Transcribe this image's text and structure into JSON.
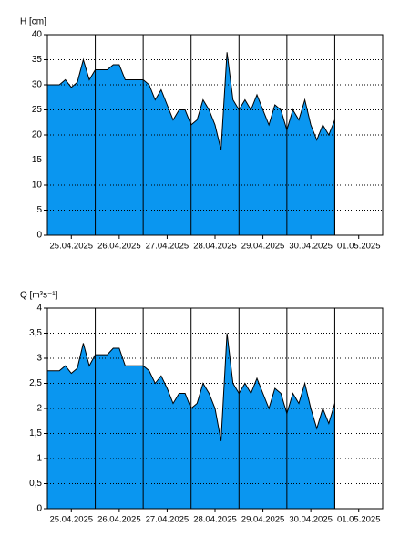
{
  "chart_data": [
    {
      "type": "area",
      "title": "H [cm]",
      "color": "#0a96f0",
      "grid": true,
      "x": [
        0,
        0.125,
        0.25,
        0.375,
        0.5,
        0.625,
        0.75,
        0.875,
        1,
        1.125,
        1.25,
        1.375,
        1.5,
        1.625,
        1.75,
        1.875,
        2,
        2.125,
        2.25,
        2.375,
        2.5,
        2.625,
        2.75,
        2.875,
        3,
        3.125,
        3.25,
        3.375,
        3.5,
        3.625,
        3.75,
        3.875,
        4,
        4.125,
        4.25,
        4.375,
        4.5,
        4.625,
        4.75,
        4.875,
        5,
        5.125,
        5.25,
        5.375,
        5.5,
        5.625,
        5.75,
        5.875,
        6
      ],
      "values": [
        30,
        30,
        30,
        31,
        29.5,
        30.5,
        35,
        31,
        33,
        33,
        33,
        34,
        34,
        31,
        31,
        31,
        31,
        30,
        27,
        29,
        26,
        23,
        25,
        25,
        22,
        23,
        27,
        25,
        22,
        17,
        36.5,
        27,
        25,
        27,
        25,
        28,
        25,
        22,
        26,
        25,
        21,
        25,
        23,
        27,
        22,
        19,
        22,
        20,
        23
      ],
      "xlim": [
        0,
        7
      ],
      "xticks": [
        {
          "value": 0.5,
          "label": "25.04.2025"
        },
        {
          "value": 1.5,
          "label": "26.04.2025"
        },
        {
          "value": 2.5,
          "label": "27.04.2025"
        },
        {
          "value": 3.5,
          "label": "28.04.2025"
        },
        {
          "value": 4.5,
          "label": "29.04.2025"
        },
        {
          "value": 5.5,
          "label": "30.04.2025"
        },
        {
          "value": 6.5,
          "label": "01.05.2025"
        }
      ],
      "ylim": [
        0,
        40
      ],
      "yticks": [
        0,
        5,
        10,
        15,
        20,
        25,
        30,
        35,
        40
      ]
    },
    {
      "type": "area",
      "title": "Q [m³s⁻¹]",
      "color": "#0a96f0",
      "grid": true,
      "x": [
        0,
        0.125,
        0.25,
        0.375,
        0.5,
        0.625,
        0.75,
        0.875,
        1,
        1.125,
        1.25,
        1.375,
        1.5,
        1.625,
        1.75,
        1.875,
        2,
        2.125,
        2.25,
        2.375,
        2.5,
        2.625,
        2.75,
        2.875,
        3,
        3.125,
        3.25,
        3.375,
        3.5,
        3.625,
        3.75,
        3.875,
        4,
        4.125,
        4.25,
        4.375,
        4.5,
        4.625,
        4.75,
        4.875,
        5,
        5.125,
        5.25,
        5.375,
        5.5,
        5.625,
        5.75,
        5.875,
        6
      ],
      "values": [
        2.75,
        2.75,
        2.75,
        2.85,
        2.7,
        2.8,
        3.3,
        2.85,
        3.07,
        3.07,
        3.07,
        3.2,
        3.2,
        2.85,
        2.85,
        2.85,
        2.85,
        2.75,
        2.5,
        2.65,
        2.4,
        2.1,
        2.3,
        2.3,
        2.0,
        2.1,
        2.5,
        2.3,
        2.0,
        1.35,
        3.5,
        2.5,
        2.3,
        2.5,
        2.3,
        2.6,
        2.3,
        2.0,
        2.4,
        2.3,
        1.9,
        2.3,
        2.1,
        2.5,
        2.0,
        1.6,
        2.0,
        1.7,
        2.1
      ],
      "xlim": [
        0,
        7
      ],
      "xticks": [
        {
          "value": 0.5,
          "label": "25.04.2025"
        },
        {
          "value": 1.5,
          "label": "26.04.2025"
        },
        {
          "value": 2.5,
          "label": "27.04.2025"
        },
        {
          "value": 3.5,
          "label": "28.04.2025"
        },
        {
          "value": 4.5,
          "label": "29.04.2025"
        },
        {
          "value": 5.5,
          "label": "30.04.2025"
        },
        {
          "value": 6.5,
          "label": "01.05.2025"
        }
      ],
      "ylim": [
        0,
        4
      ],
      "yticks": [
        0,
        {
          "value": 0.5,
          "label": "0,5"
        },
        1,
        {
          "value": 1.5,
          "label": "1,5"
        },
        2,
        {
          "value": 2.5,
          "label": "2,5"
        },
        3,
        {
          "value": 3.5,
          "label": "3,5"
        },
        4
      ]
    }
  ]
}
